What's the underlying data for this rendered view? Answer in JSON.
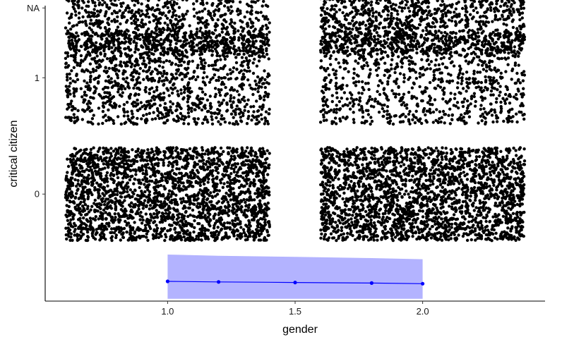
{
  "chart_data": {
    "type": "scatter",
    "xlabel": "gender",
    "ylabel": "critical citizen",
    "xlim": [
      0.52,
      2.48
    ],
    "ylim": [
      -0.92,
      1.62
    ],
    "x_ticks": [
      {
        "value": 1.0,
        "label": "1.0"
      },
      {
        "value": 1.5,
        "label": "1.5"
      },
      {
        "value": 2.0,
        "label": "2.0"
      }
    ],
    "y_ticks": [
      {
        "value": 0,
        "label": "0"
      },
      {
        "value": 1,
        "label": "1"
      },
      {
        "value": 1.6,
        "label": "NA"
      }
    ],
    "grid": false,
    "jitter": {
      "x_halfwidth": 0.4,
      "y_halfwidth": 0.4
    },
    "groups": [
      {
        "x": 1,
        "y": 0,
        "count": 2400
      },
      {
        "x": 2,
        "y": 0,
        "count": 2400
      },
      {
        "x": 1,
        "y": 1,
        "count": 1300
      },
      {
        "x": 2,
        "y": 1,
        "count": 1000
      },
      {
        "x": 1,
        "y": 1.6,
        "count": 1400
      },
      {
        "x": 2,
        "y": 1.6,
        "count": 1700
      }
    ],
    "trend": {
      "x": [
        1.0,
        1.2,
        1.5,
        1.8,
        2.0
      ],
      "y": [
        -0.75,
        -0.755,
        -0.76,
        -0.765,
        -0.77
      ],
      "ci_lower": [
        -0.9,
        -0.9,
        -0.9,
        -0.9,
        -0.9
      ],
      "ci_upper": [
        -0.52,
        -0.53,
        -0.54,
        -0.55,
        -0.56
      ]
    },
    "colors": {
      "points": "#000000",
      "line": "#0000ff",
      "band": "#b3b3ff"
    }
  }
}
